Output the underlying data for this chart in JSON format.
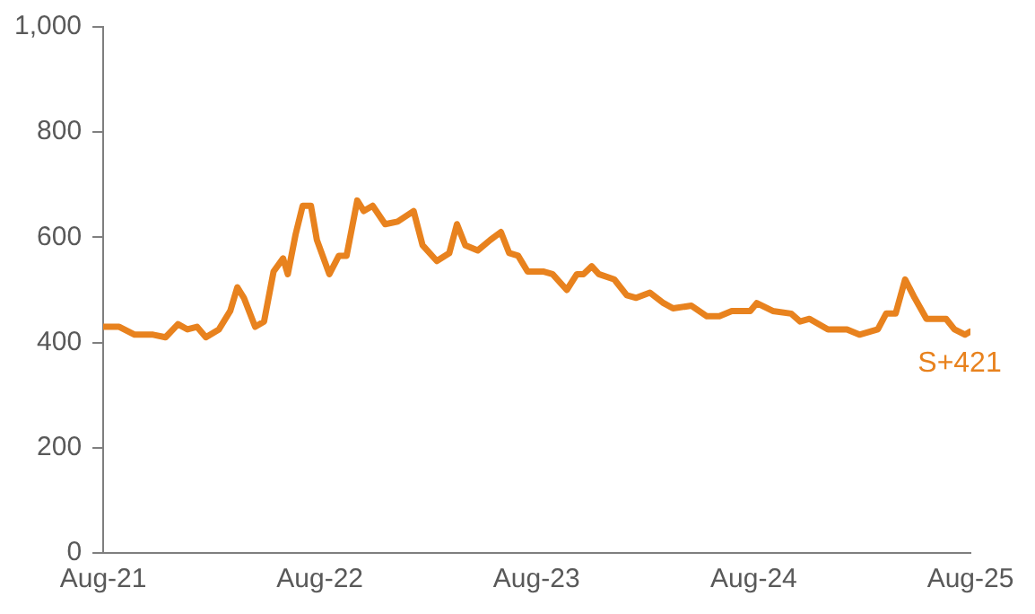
{
  "chart_data": {
    "type": "line",
    "x": [
      "2021-08-01",
      "2021-08-28",
      "2021-09-23",
      "2021-10-24",
      "2021-11-14",
      "2021-12-05",
      "2021-12-21",
      "2022-01-06",
      "2022-01-21",
      "2022-02-12",
      "2022-03-03",
      "2022-03-15",
      "2022-03-26",
      "2022-04-14",
      "2022-04-29",
      "2022-05-15",
      "2022-05-31",
      "2022-06-08",
      "2022-06-21",
      "2022-07-03",
      "2022-07-17",
      "2022-07-27",
      "2022-08-17",
      "2022-09-02",
      "2022-09-15",
      "2022-10-03",
      "2022-10-14",
      "2022-10-29",
      "2022-11-19",
      "2022-12-10",
      "2023-01-06",
      "2023-01-21",
      "2023-02-14",
      "2023-03-07",
      "2023-03-20",
      "2023-04-03",
      "2023-04-24",
      "2023-05-15",
      "2023-06-02",
      "2023-06-16",
      "2023-07-01",
      "2023-07-17",
      "2023-08-12",
      "2023-08-28",
      "2023-09-21",
      "2023-10-08",
      "2023-10-19",
      "2023-11-02",
      "2023-11-14",
      "2023-12-10",
      "2023-12-31",
      "2024-01-16",
      "2024-02-08",
      "2024-03-02",
      "2024-03-18",
      "2024-04-18",
      "2024-05-14",
      "2024-06-04",
      "2024-06-25",
      "2024-07-26",
      "2024-08-06",
      "2024-09-02",
      "2024-10-03",
      "2024-10-18",
      "2024-11-03",
      "2024-12-04",
      "2025-01-05",
      "2025-01-26",
      "2025-02-26",
      "2025-03-12",
      "2025-03-28",
      "2025-04-13",
      "2025-04-29",
      "2025-05-19",
      "2025-06-04",
      "2025-06-21",
      "2025-07-05",
      "2025-07-23",
      "2025-08-01"
    ],
    "series": [
      {
        "color": "#e8821e",
        "values": [
          430,
          430,
          415,
          415,
          410,
          435,
          425,
          430,
          410,
          425,
          460,
          505,
          485,
          430,
          440,
          535,
          560,
          530,
          605,
          660,
          660,
          595,
          530,
          565,
          565,
          670,
          650,
          660,
          625,
          630,
          650,
          585,
          555,
          570,
          625,
          585,
          575,
          595,
          610,
          570,
          565,
          535,
          535,
          530,
          500,
          530,
          530,
          545,
          530,
          520,
          490,
          485,
          495,
          475,
          465,
          470,
          450,
          450,
          460,
          460,
          475,
          460,
          455,
          440,
          445,
          425,
          425,
          415,
          425,
          455,
          455,
          520,
          485,
          445,
          445,
          445,
          425,
          415,
          421
        ]
      }
    ],
    "xlim": [
      "2021-08-01",
      "2025-08-01"
    ],
    "xticks": [
      {
        "value": "2021-08-01",
        "label": "Aug-21"
      },
      {
        "value": "2022-08-01",
        "label": "Aug-22"
      },
      {
        "value": "2023-08-01",
        "label": "Aug-23"
      },
      {
        "value": "2024-08-01",
        "label": "Aug-24"
      },
      {
        "value": "2025-08-01",
        "label": "Aug-25"
      }
    ],
    "ylim": [
      0,
      1000
    ],
    "yticks": [
      0,
      200,
      400,
      600,
      800,
      {
        "value": 1000,
        "label": "1,000"
      }
    ],
    "annotations": [
      {
        "text": "S+421",
        "x": "2025-08-01",
        "y": 421
      }
    ],
    "grid": false,
    "legend": false,
    "marker": "none",
    "line_style": "solid"
  }
}
